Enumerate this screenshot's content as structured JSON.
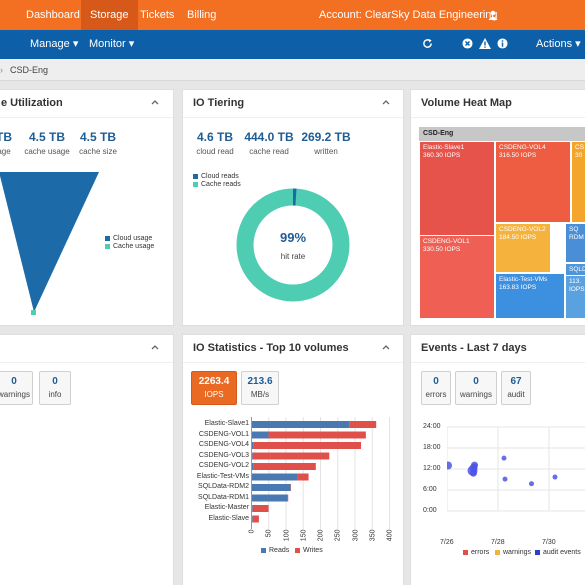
{
  "nav": {
    "tabs": [
      "Dashboard",
      "Storage",
      "Tickets",
      "Billing"
    ],
    "active_tab": "Storage",
    "account": "Account: ClearSky Data Engineering"
  },
  "subnav": {
    "manage": "Manage",
    "monitor": "Monitor",
    "actions": "Actions"
  },
  "breadcrumb": "CSD-Eng",
  "panels": {
    "cache": {
      "title": "e Utilization",
      "stats": [
        {
          "value": "TB",
          "label": "age"
        },
        {
          "value": "4.5 TB",
          "label": "cache usage"
        },
        {
          "value": "4.5 TB",
          "label": "cache size"
        }
      ],
      "legend": [
        "Cloud usage",
        "Cache usage"
      ]
    },
    "tiering": {
      "title": "IO Tiering",
      "stats": [
        {
          "value": "4.6 TB",
          "label": "cloud read"
        },
        {
          "value": "444.0 TB",
          "label": "cache read"
        },
        {
          "value": "269.2 TB",
          "label": "written"
        }
      ],
      "legend": [
        "Cloud reads",
        "Cache reads"
      ],
      "hit_rate_value": "99%",
      "hit_rate_label": "hit rate",
      "hit_rate_fraction": 0.99
    },
    "heatmap": {
      "title": "Volume Heat Map",
      "group": "CSD-Eng",
      "cells": [
        {
          "name": "Elastic-Slave1",
          "iops": "360.30 IOPS"
        },
        {
          "name": "CSDENG-VOL4",
          "iops": "316.50 IOPS"
        },
        {
          "name": "CS",
          "iops": "30"
        },
        {
          "name": "CSDENG-VOL1",
          "iops": "330.50 IOPS"
        },
        {
          "name": "CSDENG-VOL2",
          "iops": "184.50 IOPS"
        },
        {
          "name": "SQ",
          "iops": "RDM"
        },
        {
          "name": "Elastic-Test-VMs",
          "iops": "163.83 IOPS"
        },
        {
          "name": "SQLD",
          "iops": "RDM"
        },
        {
          "name": "113.",
          "iops": "IOPS"
        }
      ]
    },
    "alerts": {
      "boxes": [
        {
          "value": "0",
          "label": "warnings"
        },
        {
          "value": "0",
          "label": "info"
        }
      ]
    },
    "iostats": {
      "title": "IO Statistics - Top 10 volumes",
      "iops_value": "2263.4",
      "iops_label": "IOPS",
      "mbs_value": "213.6",
      "mbs_label": "MB/s",
      "legend": [
        "Reads",
        "Writes"
      ]
    },
    "events": {
      "title": "Events - Last 7 days",
      "boxes": [
        {
          "value": "0",
          "label": "errors"
        },
        {
          "value": "0",
          "label": "warnings"
        },
        {
          "value": "67",
          "label": "audit"
        }
      ],
      "legend": [
        "errors",
        "warnings",
        "audit events"
      ],
      "yticks": [
        "24:00",
        "18:00",
        "12:00",
        "6:00",
        "0:00"
      ],
      "xticks": [
        "7/26",
        "7/28",
        "7/30",
        "8/"
      ]
    }
  },
  "colors": {
    "orange": "#f36f21",
    "blue": "#0d5fa7",
    "reads": "#4a79b1",
    "writes": "#e0504a",
    "teal": "#4ecdb2",
    "dark_blue": "#1d6aa8"
  },
  "chart_data": [
    {
      "type": "bar",
      "title": "IO Statistics - Top 10 volumes",
      "categories": [
        "Elastic-Slave1",
        "CSDENG-VOL1",
        "CSDENG-VOL4",
        "CSDENG-VOL3",
        "CSDENG-VOL2",
        "Elastic-Test-VMs",
        "SQLData-RDM2",
        "SQLData-RDM1",
        "Elastic-Master",
        "Elastic-Slave"
      ],
      "series": [
        {
          "name": "Reads",
          "values": [
            282,
            48,
            5,
            2,
            4,
            133,
            112,
            104,
            2,
            2
          ]
        },
        {
          "name": "Writes",
          "values": [
            78,
            282,
            311,
            222,
            181,
            31,
            1,
            1,
            46,
            18
          ]
        }
      ],
      "xlim": [
        0,
        400
      ],
      "xticks": [
        0,
        50,
        100,
        150,
        200,
        250,
        300,
        350,
        400
      ]
    },
    {
      "type": "scatter",
      "title": "Events - Last 7 days",
      "series": [
        {
          "name": "audit events",
          "points": [
            {
              "x": "7/26",
              "y": 13.0
            },
            {
              "x": "7/27",
              "y": 11.5
            },
            {
              "x": "7/27",
              "y": 12.3
            },
            {
              "x": "7/27",
              "y": 13.1
            },
            {
              "x": "7/27",
              "y": 10.8
            },
            {
              "x": "7/27",
              "y": 12.8
            },
            {
              "x": "7/28",
              "y": 9.1
            },
            {
              "x": "7/28",
              "y": 15.1
            },
            {
              "x": "7/29",
              "y": 7.8
            },
            {
              "x": "7/30",
              "y": 9.7
            },
            {
              "x": "8/1",
              "y": 9.3
            }
          ]
        }
      ],
      "ylim": [
        0,
        24
      ]
    }
  ]
}
